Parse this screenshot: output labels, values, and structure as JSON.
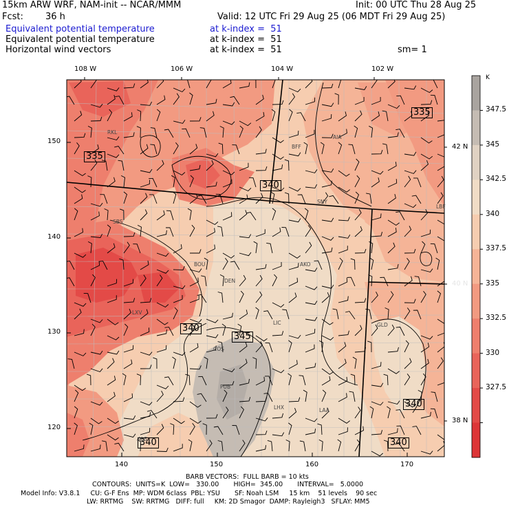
{
  "header": {
    "model_line": "15km ARW WRF, NAM-init -- NCAR/MMM",
    "init_line": "Init: 00 UTC Thu 28 Aug 25",
    "fcst_label": "Fcst:",
    "fcst_value": "36 h",
    "valid_line": "Valid: 12 UTC Fri 29 Aug 25 (06 MDT Fri 29 Aug 25)",
    "fields": [
      {
        "name": "Equivalent potential temperature",
        "level": "at k-index =  51",
        "color": "#1a1ad0"
      },
      {
        "name": "Equivalent potential temperature",
        "level": "at k-index =  51",
        "color": "#000000"
      },
      {
        "name": "Horizontal wind vectors",
        "level": "at k-index =  51",
        "color": "#000000"
      }
    ],
    "smoothing": "sm= 1"
  },
  "axes": {
    "top_lon_labels": [
      "108 W",
      "106 W",
      "104 W",
      "102 W"
    ],
    "right_lat_labels": [
      "42 N",
      "40 N",
      "38 N"
    ],
    "left_grid_labels": [
      "150",
      "140",
      "130",
      "120"
    ],
    "bottom_grid_labels": [
      "140",
      "150",
      "160",
      "170"
    ]
  },
  "colorbar": {
    "unit": "K",
    "labels": [
      "347.5",
      "345",
      "342.5",
      "340",
      "337.5",
      "335",
      "332.5",
      "330",
      "327.5"
    ],
    "colors": [
      "#a9a49f",
      "#c5bcb3",
      "#e0d2c3",
      "#f0dcc6",
      "#f6cdb0",
      "#f5b497",
      "#f29a81",
      "#ee7f6d",
      "#e9645a",
      "#e34a47",
      "#dd3537"
    ]
  },
  "contour_labels": [
    "335",
    "335",
    "340",
    "340",
    "345",
    "340",
    "340"
  ],
  "stations": [
    "RKL",
    "BFF",
    "AIA",
    "SNY",
    "LBF",
    "SBS",
    "BOU",
    "DEN",
    "AKO",
    "LXV",
    "LIC",
    "COS",
    "GLD",
    "PUB",
    "LHX",
    "LAA",
    "ALS"
  ],
  "footer": {
    "barb_line": "BARB VECTORS:  FULL BARB = 10 kts",
    "contour_line": "CONTOURS:  UNITS=K  LOW=   330.00       HIGH=  345.00       INTERVAL=   5.0000",
    "model_info_line": "Model Info: V3.8.1     CU: G-F Ens  MP: WDM 6class  PBL: YSU       SF: Noah LSM     15 km    51 levels    90 sec",
    "physics_line": "LW: RRTMG    SW: RRTMG   DIFF: full     KM: 2D Smagor  DAMP: Rayleigh3   SFLAY: MM5"
  }
}
